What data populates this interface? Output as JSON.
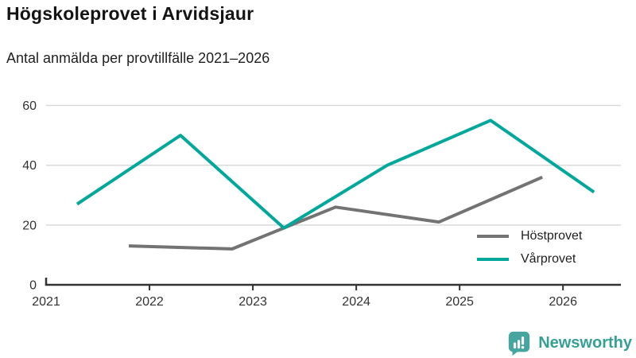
{
  "header": {
    "title": "Högskoleprovet i Arvidsjaur",
    "subtitle": "Antal anmälda per provtillfälle 2021–2026"
  },
  "chart_data": {
    "type": "line",
    "title": "Högskoleprovet i Arvidsjaur",
    "subtitle": "Antal anmälda per provtillfälle 2021–2026",
    "xlabel": "",
    "ylabel": "",
    "x_tick_labels": [
      "2021",
      "2022",
      "2023",
      "2024",
      "2025",
      "2026"
    ],
    "x_tick_years": [
      2021,
      2022,
      2023,
      2024,
      2025,
      2026
    ],
    "y_ticks": [
      0,
      20,
      40,
      60
    ],
    "xlim": [
      2021,
      2026.56
    ],
    "ylim": [
      0,
      66
    ],
    "grid": "horizontal-only",
    "grid_color": "#d9d9d9",
    "axis_color": "#333333",
    "axis_text_color": "#333333",
    "legend_position": "inside-bottom-right",
    "series": [
      {
        "name": "Höstprovet",
        "color": "#737373",
        "x": [
          2021.8,
          2022.8,
          2023.8,
          2024.8,
          2025.8
        ],
        "values": [
          13,
          12,
          26,
          21,
          36
        ]
      },
      {
        "name": "Vårprovet",
        "color": "#00a79b",
        "x": [
          2021.3,
          2022.3,
          2023.3,
          2024.3,
          2025.3,
          2026.3
        ],
        "values": [
          27,
          50,
          19,
          40,
          55,
          31
        ]
      }
    ]
  },
  "branding": {
    "name": "Newsworthy",
    "color": "#35a096",
    "icon": "newsworthy-speech-bubble-bar-chart-icon"
  }
}
